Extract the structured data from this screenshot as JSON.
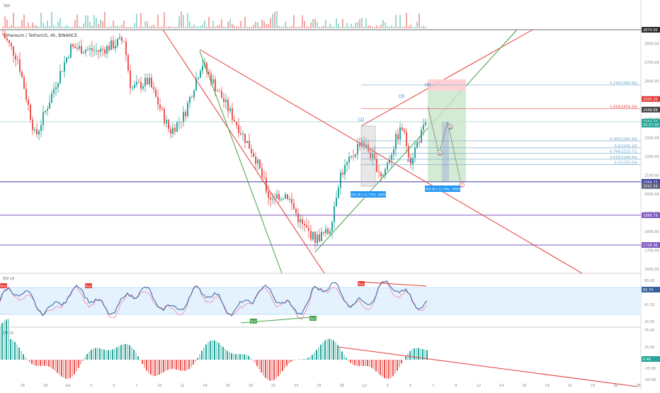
{
  "header": {
    "volume_label": "Vol",
    "symbol_text": "Ethereum / TetherUS, 4h, BINANCE"
  },
  "chart_data": [
    {
      "type": "candlestick",
      "panel": "price",
      "price_scale": {
        "ticks": [
          "2800.00",
          "2700.00",
          "2600.00",
          "2500.00",
          "2400.00",
          "2300.00",
          "2200.00",
          "2100.00",
          "2000.00",
          "1900.00",
          "1800.00",
          "1700.00",
          "1600.00"
        ],
        "ylim": [
          1580,
          2860
        ]
      },
      "price_badges": [
        {
          "value": "2874.00",
          "color": "#2a2a2a"
        },
        {
          "value": "2505.30",
          "color": "#e53935"
        },
        {
          "value": "2448.88",
          "color": "#424242"
        },
        {
          "value": "2384.40",
          "color": "#26a69a"
        },
        {
          "value": "02:37:33",
          "color": "#26a69a"
        },
        {
          "value": "2064.33",
          "color": "#3f3f9e"
        },
        {
          "value": "2042.56",
          "color": "#5b5b7a"
        },
        {
          "value": "1886.79",
          "color": "#7e57c2"
        },
        {
          "value": "1728.36",
          "color": "#7e57c2"
        }
      ],
      "x_ticks": [
        "26",
        "28",
        "Jun",
        "3",
        "5",
        "7",
        "10",
        "12",
        "14",
        "16",
        "18",
        "21",
        "23",
        "25",
        "28",
        "Jul",
        "3",
        "5",
        "7",
        "9",
        "12",
        "14",
        "16",
        "19",
        "21",
        "23",
        "26",
        "28"
      ],
      "horizontal_levels": [
        2874,
        2064.33,
        1886.79,
        1728.36
      ],
      "fib_levels": [
        {
          "label": "0.236(2580.06)",
          "value": 2580.06
        },
        {
          "label": "1.618(2454.20)",
          "value": 2454.2
        },
        {
          "label": "0.382(2282.59)",
          "value": 2282.59
        },
        {
          "label": "0.5(2245.10)",
          "value": 2245.1
        },
        {
          "label": "0.786(2215.71)",
          "value": 2215.71
        },
        {
          "label": "0.618(2184.40)",
          "value": 2184.4
        },
        {
          "label": "0.5(2155.54)",
          "value": 2155.54
        }
      ],
      "wave_labels": [
        "(1)",
        "(3)",
        "(5)",
        "(4)",
        "A",
        "B",
        "C"
      ],
      "measure_labels": [
        "-269.28 (-11.77%) -26928",
        "-269.28 (-11.54%) -26928"
      ]
    },
    {
      "type": "line",
      "panel": "oscillator",
      "title": "RSI 14",
      "scale_ticks": [
        "80.00",
        "65.74",
        "42.32",
        "20.00"
      ],
      "badges": [
        "Bear",
        "Bear",
        "Bear",
        "Bull",
        "Bull"
      ],
      "value_badge": "65.74"
    },
    {
      "type": "bar",
      "panel": "histogram",
      "title": "MACD",
      "scale_ticks": [
        "75.00",
        "25.00",
        "0.00",
        "-25.00",
        "-50.00"
      ],
      "value_badge": "0.46"
    }
  ],
  "colors": {
    "up": "#26a69a",
    "down": "#ef5350",
    "trend_red": "#e53935",
    "trend_green": "#43a047",
    "level_purple": "#7e57c2",
    "target_green": "#c8e6c9",
    "stop_red": "#ffcdd2",
    "rsi_band": "#e3f2fd",
    "accent_blue": "#2196f3"
  }
}
